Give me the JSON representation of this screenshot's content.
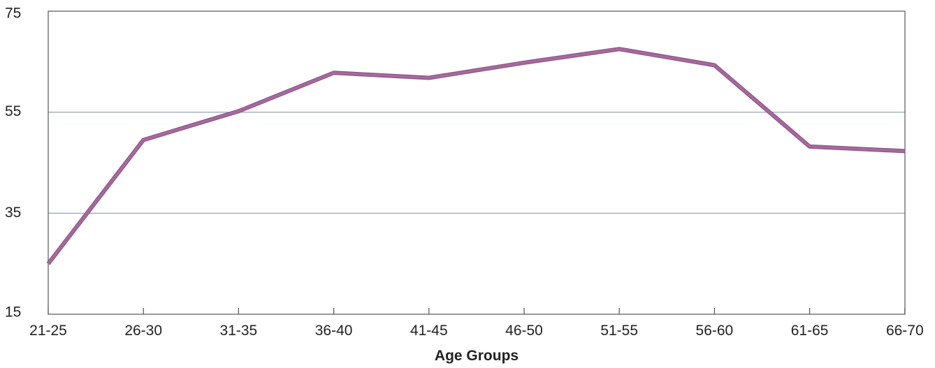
{
  "chart_data": {
    "type": "line",
    "title": "",
    "xlabel": "Age Groups",
    "ylabel": "",
    "categories": [
      "21-25",
      "26-30",
      "31-35",
      "36-40",
      "41-45",
      "46-50",
      "51-55",
      "56-60",
      "61-65",
      "66-70"
    ],
    "series": [
      {
        "values": [
          25,
          49.5,
          55.2,
          62.8,
          61.8,
          64.8,
          67.5,
          64.3,
          48.2,
          47.3
        ]
      }
    ],
    "ylim": [
      15,
      75
    ],
    "yticks": [
      "15",
      "35",
      "55",
      "75"
    ],
    "grid": true,
    "legend": "none",
    "colors": {
      "line": "#a66a9c",
      "grid": "#8a9ab0",
      "axis": "#555555",
      "text": "#222222"
    }
  }
}
